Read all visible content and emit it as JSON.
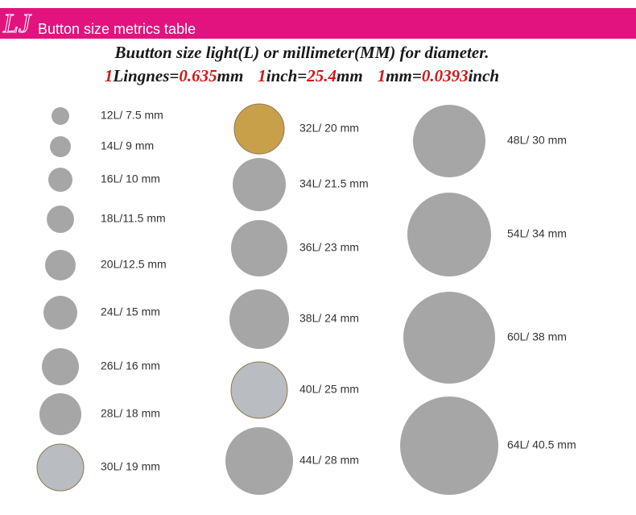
{
  "header": {
    "logo": "LJ",
    "title": "Button size metrics table"
  },
  "subtitle": "Buutton size light(L) or millimeter(MM) for diameter.",
  "conversion": [
    "1",
    "Lingnes=",
    "0.635",
    "mm",
    "1",
    "inch=",
    "25.4",
    "mm",
    "1",
    "mm=",
    "0.0393",
    "inch"
  ],
  "columns": [
    {
      "items": [
        "12L/ 7.5 mm",
        "14L/ 9 mm",
        "16L/ 10 mm",
        "18L/11.5 mm",
        "20L/12.5 mm",
        "24L/ 15 mm",
        "26L/ 16 mm",
        "28L/ 18 mm",
        "30L/ 19 mm"
      ]
    },
    {
      "items": [
        "32L/ 20 mm",
        "34L/ 21.5 mm",
        "36L/ 23 mm",
        "38L/ 24 mm",
        "40L/ 25 mm",
        "44L/ 28 mm"
      ]
    },
    {
      "items": [
        "48L/ 30 mm",
        "54L/ 34 mm",
        "60L/ 38 mm",
        "64L/ 40.5 mm"
      ]
    }
  ]
}
